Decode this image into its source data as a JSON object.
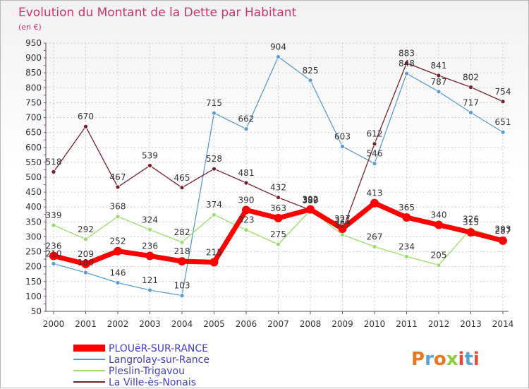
{
  "chart_data": {
    "type": "line",
    "title": "Evolution du Montant de la Dette par Habitant",
    "subtitle": "(en €)",
    "x": [
      "2000",
      "2001",
      "2002",
      "2003",
      "2004",
      "2005",
      "2006",
      "2007",
      "2008",
      "2009",
      "2010",
      "2011",
      "2012",
      "2013",
      "2014"
    ],
    "ylim": [
      50,
      950
    ],
    "yticks": [
      50,
      100,
      150,
      200,
      250,
      300,
      350,
      400,
      450,
      500,
      550,
      600,
      650,
      700,
      750,
      800,
      850,
      900,
      950
    ],
    "grid": true,
    "legend_position": "bottom-left",
    "series": [
      {
        "name": "PLOUëR-SUR-RANCE",
        "color": "#ff0000",
        "values": [
          236,
          209,
          252,
          236,
          218,
          215,
          390,
          363,
          392,
          327,
          413,
          365,
          340,
          315,
          287
        ]
      },
      {
        "name": "Langrolay-sur-Rance",
        "color": "#5b9bd5",
        "values": [
          210,
          180,
          146,
          121,
          103,
          715,
          662,
          904,
          825,
          603,
          546,
          848,
          787,
          717,
          651
        ]
      },
      {
        "name": "Pleslin-Trigavou",
        "color": "#99dd66",
        "values": [
          339,
          292,
          368,
          324,
          282,
          374,
          323,
          275,
          389,
          307,
          267,
          234,
          205,
          326,
          293
        ]
      },
      {
        "name": "La Ville-ès-Nonais",
        "color": "#7a1f2a",
        "values": [
          518,
          670,
          467,
          539,
          465,
          528,
          481,
          432,
          390,
          321,
          612,
          883,
          841,
          802,
          754
        ]
      }
    ]
  },
  "logo": {
    "text": "Proxiti"
  }
}
